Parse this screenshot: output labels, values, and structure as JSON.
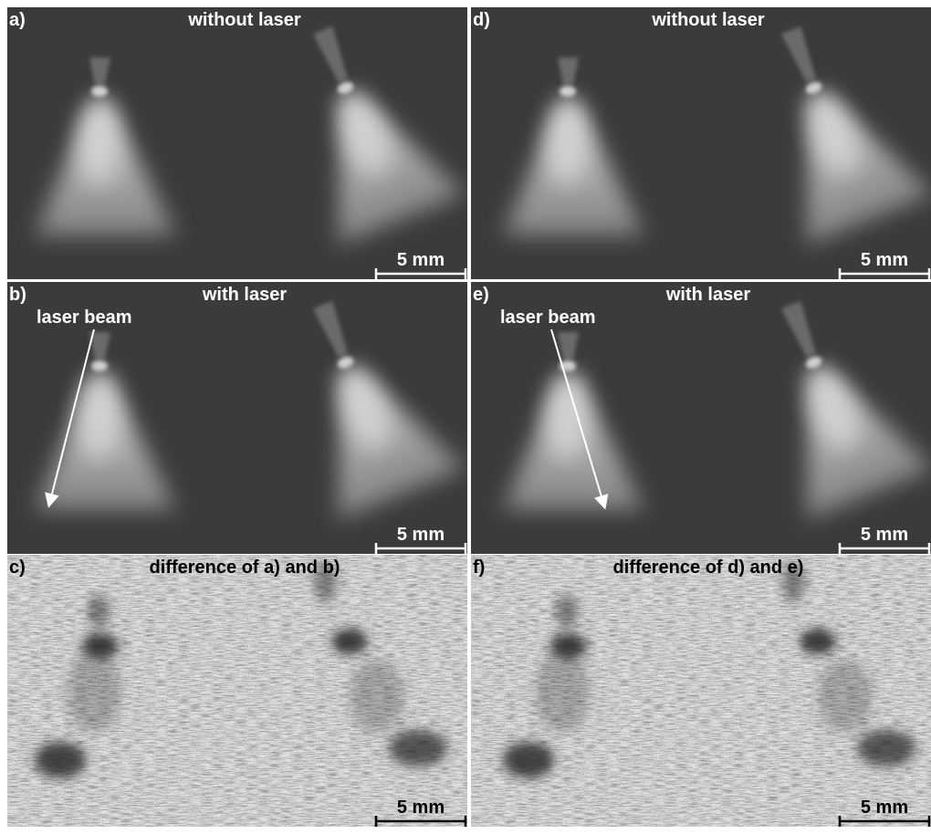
{
  "panels": [
    {
      "label": "a)",
      "title": "without laser",
      "scale_bar": "5 mm"
    },
    {
      "label": "d)",
      "title": "without laser",
      "scale_bar": "5 mm"
    },
    {
      "label": "b)",
      "title": "with laser",
      "annotation": "laser beam",
      "scale_bar": "5 mm"
    },
    {
      "label": "e)",
      "title": "with laser",
      "annotation": "laser beam",
      "scale_bar": "5 mm"
    },
    {
      "label": "c)",
      "title": "difference of a) and b)",
      "scale_bar": "5 mm"
    },
    {
      "label": "f)",
      "title": "difference of d) and e)",
      "scale_bar": "5 mm"
    }
  ]
}
